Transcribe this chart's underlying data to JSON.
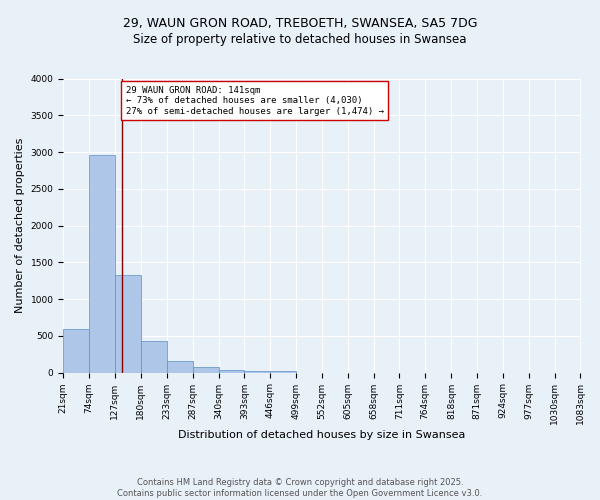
{
  "title_line1": "29, WAUN GRON ROAD, TREBOETH, SWANSEA, SA5 7DG",
  "title_line2": "Size of property relative to detached houses in Swansea",
  "xlabel": "Distribution of detached houses by size in Swansea",
  "ylabel": "Number of detached properties",
  "bar_edges": [
    21,
    74,
    127,
    180,
    233,
    287,
    340,
    393,
    446,
    499,
    552,
    605,
    658,
    711,
    764,
    818,
    871,
    924,
    977,
    1030,
    1083
  ],
  "bar_heights": [
    590,
    2960,
    1330,
    430,
    160,
    80,
    40,
    28,
    22,
    0,
    0,
    0,
    0,
    0,
    0,
    0,
    0,
    0,
    0,
    0
  ],
  "bar_color": "#aec6e8",
  "bar_edge_color": "#5b8fc4",
  "property_line_x": 141,
  "property_line_color": "#8b0000",
  "annotation_text": "29 WAUN GRON ROAD: 141sqm\n← 73% of detached houses are smaller (4,030)\n27% of semi-detached houses are larger (1,474) →",
  "annotation_box_color": "#ffffff",
  "annotation_box_edgecolor": "#cc0000",
  "ylim": [
    0,
    4000
  ],
  "yticks": [
    0,
    500,
    1000,
    1500,
    2000,
    2500,
    3000,
    3500,
    4000
  ],
  "tick_labels": [
    "21sqm",
    "74sqm",
    "127sqm",
    "180sqm",
    "233sqm",
    "287sqm",
    "340sqm",
    "393sqm",
    "446sqm",
    "499sqm",
    "552sqm",
    "605sqm",
    "658sqm",
    "711sqm",
    "764sqm",
    "818sqm",
    "871sqm",
    "924sqm",
    "977sqm",
    "1030sqm",
    "1083sqm"
  ],
  "background_color": "#e8f0f8",
  "grid_color": "#ffffff",
  "footer_text": "Contains HM Land Registry data © Crown copyright and database right 2025.\nContains public sector information licensed under the Open Government Licence v3.0.",
  "title_fontsize": 9,
  "subtitle_fontsize": 8.5,
  "axis_fontsize": 8,
  "tick_fontsize": 6.5,
  "footer_fontsize": 6,
  "annotation_fontsize": 6.5
}
